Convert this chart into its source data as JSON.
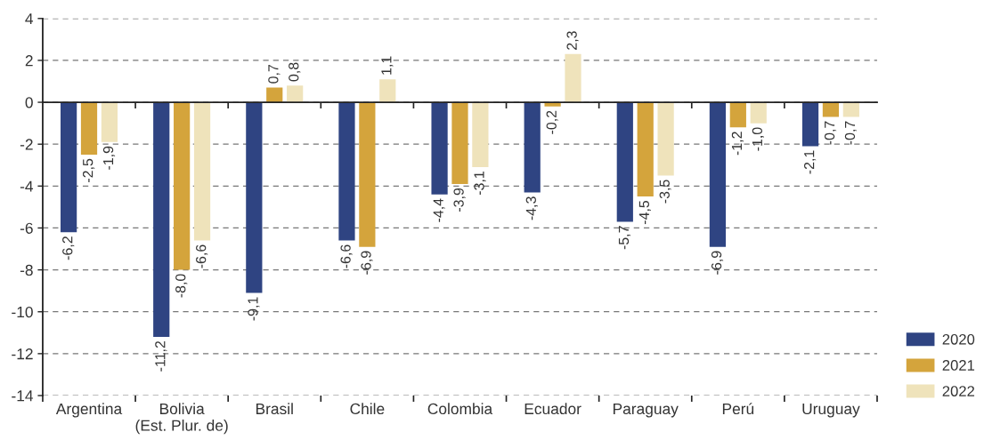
{
  "chart_data": {
    "type": "bar",
    "categories": [
      "Argentina",
      "Bolivia\n(Est. Plur. de)",
      "Brasil",
      "Chile",
      "Colombia",
      "Ecuador",
      "Paraguay",
      "Perú",
      "Uruguay"
    ],
    "series": [
      {
        "name": "2020",
        "color": "#2f4482",
        "values": [
          -6.2,
          -11.2,
          -9.1,
          -6.6,
          -4.4,
          -4.3,
          -5.7,
          -6.9,
          -2.1
        ],
        "value_labels": [
          "-6,2",
          "-11,2",
          "-9,1",
          "-6,6",
          "-4,4",
          "-4,3",
          "-5,7",
          "-6,9",
          "-2,1"
        ]
      },
      {
        "name": "2021",
        "color": "#d4a43c",
        "values": [
          -2.5,
          -8.0,
          0.7,
          -6.9,
          -3.9,
          -0.2,
          -4.5,
          -1.2,
          -0.7
        ],
        "value_labels": [
          "-2,5",
          "-8,0",
          "0,7",
          "-6,9",
          "-3,9",
          "-0,2",
          "-4,5",
          "-1,2",
          "-0,7"
        ]
      },
      {
        "name": "2022",
        "color": "#efe3bb",
        "values": [
          -1.9,
          -6.6,
          0.8,
          1.1,
          -3.1,
          2.3,
          -3.5,
          -1.0,
          -0.7
        ],
        "value_labels": [
          "-1,9",
          "-6,6",
          "0,8",
          "1,1",
          "-3,1",
          "2,3",
          "-3,5",
          "-1,0",
          "-0,7"
        ]
      }
    ],
    "ylim": [
      -14,
      4
    ],
    "yticks": [
      4,
      2,
      0,
      -2,
      -4,
      -6,
      -8,
      -10,
      -12,
      -14
    ],
    "grid": "y",
    "legend": "bottom right"
  }
}
